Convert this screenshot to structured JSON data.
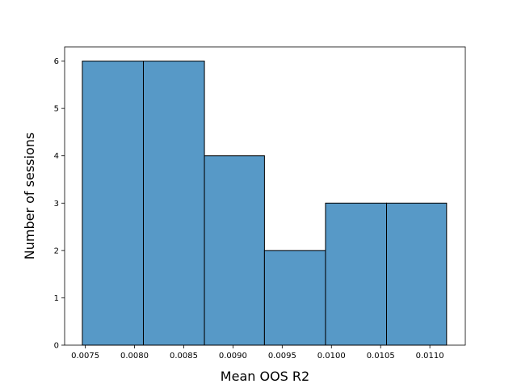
{
  "chart_data": {
    "type": "bar",
    "title": "",
    "xlabel": "Mean OOS R2",
    "ylabel": "Number of sessions",
    "bins": [
      {
        "start": 0.00747,
        "end": 0.00809,
        "count": 6
      },
      {
        "start": 0.00809,
        "end": 0.00871,
        "count": 6
      },
      {
        "start": 0.00871,
        "end": 0.00932,
        "count": 4
      },
      {
        "start": 0.00932,
        "end": 0.00994,
        "count": 2
      },
      {
        "start": 0.00994,
        "end": 0.01056,
        "count": 3
      },
      {
        "start": 0.01056,
        "end": 0.01117,
        "count": 3
      }
    ],
    "xlim": [
      0.00729,
      0.01136
    ],
    "ylim": [
      0,
      6.3
    ],
    "xticks": [
      "0.0075",
      "0.0080",
      "0.0085",
      "0.0090",
      "0.0095",
      "0.0100",
      "0.0105",
      "0.0110"
    ],
    "xtick_values": [
      0.0075,
      0.008,
      0.0085,
      0.009,
      0.0095,
      0.01,
      0.0105,
      0.011
    ],
    "yticks": [
      "0",
      "1",
      "2",
      "3",
      "4",
      "5",
      "6"
    ],
    "ytick_values": [
      0,
      1,
      2,
      3,
      4,
      5,
      6
    ],
    "grid": false,
    "bar_color": "#5799c7",
    "edge_color": "#000000"
  }
}
